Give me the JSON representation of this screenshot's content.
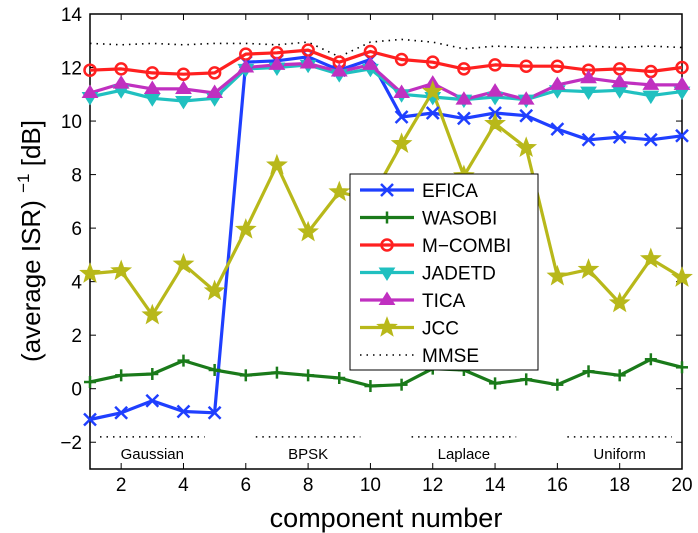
{
  "chart_data": {
    "type": "line",
    "xlabel": "component number",
    "ylabel": "(average ISR)",
    "ylabel_sup": "−1",
    "ylabel_unit": " [dB]",
    "xlim": [
      1,
      20
    ],
    "ylim": [
      -3,
      14
    ],
    "xticks": [
      2,
      4,
      6,
      8,
      10,
      12,
      14,
      16,
      18,
      20
    ],
    "yticks": [
      -2,
      0,
      2,
      4,
      6,
      8,
      10,
      12,
      14
    ],
    "grid": false,
    "legend_position": "center-right",
    "x": [
      1,
      2,
      3,
      4,
      5,
      6,
      7,
      8,
      9,
      10,
      11,
      12,
      13,
      14,
      15,
      16,
      17,
      18,
      19,
      20
    ],
    "series": [
      {
        "name": "EFICA",
        "color": "#1f3fff",
        "marker": "x",
        "style": "solid",
        "values": [
          -1.15,
          -0.9,
          -0.45,
          -0.85,
          -0.9,
          12.2,
          12.25,
          12.4,
          11.9,
          12.3,
          10.15,
          10.3,
          10.1,
          10.3,
          10.2,
          9.7,
          9.3,
          9.4,
          9.3,
          9.45
        ]
      },
      {
        "name": "WASOBI",
        "color": "#1a7a1a",
        "marker": "plus",
        "style": "solid",
        "values": [
          0.25,
          0.5,
          0.55,
          1.05,
          0.7,
          0.5,
          0.6,
          0.5,
          0.4,
          0.1,
          0.15,
          0.75,
          0.7,
          0.2,
          0.35,
          0.15,
          0.65,
          0.5,
          1.1,
          0.8
        ]
      },
      {
        "name": "M−COMBI",
        "color": "#ff2020",
        "marker": "circle",
        "style": "solid",
        "values": [
          11.9,
          11.95,
          11.8,
          11.75,
          11.8,
          12.5,
          12.55,
          12.65,
          12.2,
          12.6,
          12.3,
          12.2,
          11.95,
          12.1,
          12.05,
          12.05,
          11.9,
          11.95,
          11.85,
          12.0
        ]
      },
      {
        "name": "JADETD",
        "color": "#20c0c0",
        "marker": "triangle-down",
        "style": "solid",
        "values": [
          10.9,
          11.15,
          10.85,
          10.75,
          10.85,
          11.95,
          12.0,
          12.1,
          11.75,
          11.95,
          11.0,
          10.9,
          10.8,
          10.9,
          10.8,
          11.15,
          11.1,
          11.15,
          10.95,
          11.1
        ]
      },
      {
        "name": "TICA",
        "color": "#c030c0",
        "marker": "triangle-up",
        "style": "solid",
        "values": [
          11.05,
          11.4,
          11.2,
          11.2,
          11.05,
          12.0,
          12.1,
          12.15,
          11.85,
          12.1,
          11.05,
          11.4,
          10.8,
          11.1,
          10.8,
          11.35,
          11.6,
          11.45,
          11.35,
          11.35
        ]
      },
      {
        "name": "JCC",
        "color": "#b8b81a",
        "marker": "star",
        "style": "solid",
        "values": [
          4.3,
          4.4,
          2.75,
          4.65,
          3.65,
          5.95,
          8.35,
          5.85,
          7.35,
          7.05,
          9.15,
          11.1,
          7.95,
          9.9,
          9.0,
          4.2,
          4.45,
          3.2,
          4.85,
          4.15
        ]
      },
      {
        "name": "MMSE",
        "color": "#000000",
        "marker": "none",
        "style": "dotted",
        "values": [
          12.9,
          12.85,
          12.9,
          12.85,
          12.9,
          12.9,
          12.85,
          12.95,
          12.4,
          12.95,
          13.05,
          12.95,
          12.7,
          12.8,
          12.75,
          12.75,
          12.8,
          12.75,
          12.8,
          12.75
        ]
      }
    ],
    "segment_labels": [
      {
        "label": "Gaussian",
        "x_range": [
          1,
          5
        ]
      },
      {
        "label": "BPSK",
        "x_range": [
          6,
          10
        ]
      },
      {
        "label": "Laplace",
        "x_range": [
          11,
          15
        ]
      },
      {
        "label": "Uniform",
        "x_range": [
          16,
          20
        ]
      }
    ],
    "segment_marker_y": -1.8
  }
}
